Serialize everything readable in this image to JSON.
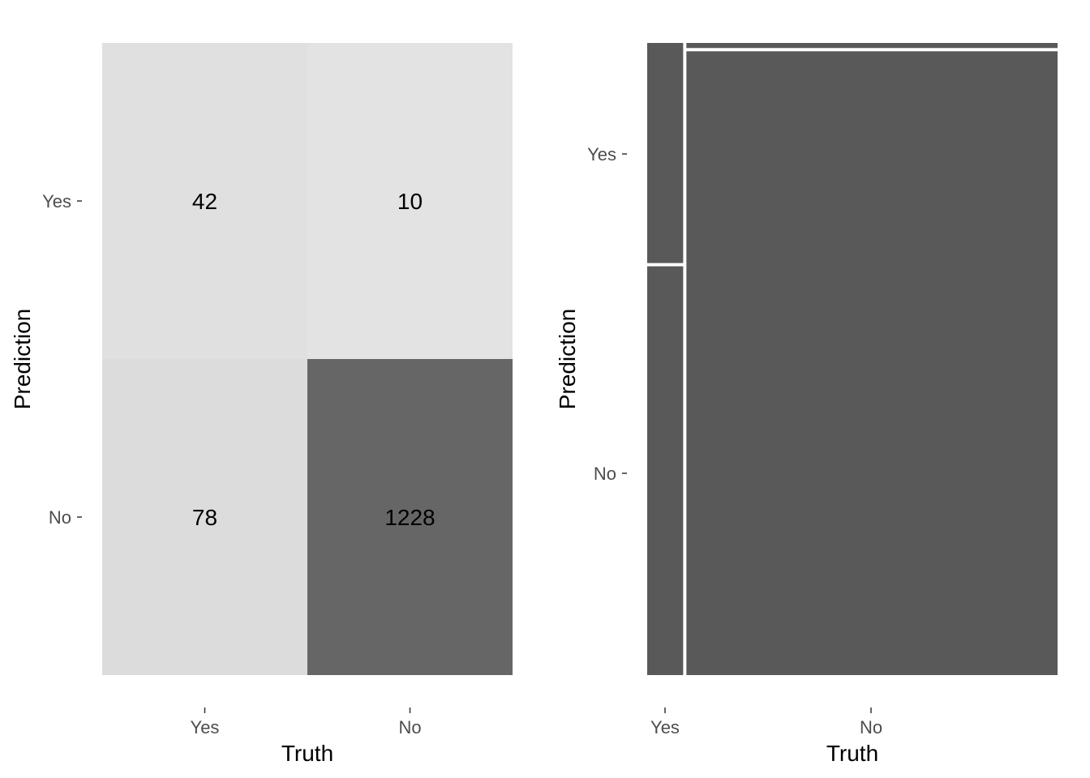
{
  "chart_data": [
    {
      "type": "heatmap",
      "xlabel": "Truth",
      "ylabel": "Prediction",
      "x_categories": [
        "Yes",
        "No"
      ],
      "y_categories": [
        "Yes",
        "No"
      ],
      "cells": [
        {
          "truth": "Yes",
          "prediction": "Yes",
          "value": 42
        },
        {
          "truth": "No",
          "prediction": "Yes",
          "value": 10
        },
        {
          "truth": "Yes",
          "prediction": "No",
          "value": 78
        },
        {
          "truth": "No",
          "prediction": "No",
          "value": 1228
        }
      ],
      "colors": {
        "low": "#e3e3e3",
        "high": "#666666"
      }
    },
    {
      "type": "mosaic",
      "xlabel": "Truth",
      "ylabel": "Prediction",
      "x_categories": [
        "Yes",
        "No"
      ],
      "y_categories": [
        "Yes",
        "No"
      ],
      "cells": [
        {
          "truth": "Yes",
          "prediction": "Yes",
          "value": 42
        },
        {
          "truth": "No",
          "prediction": "Yes",
          "value": 10
        },
        {
          "truth": "Yes",
          "prediction": "No",
          "value": 78
        },
        {
          "truth": "No",
          "prediction": "No",
          "value": 1228
        }
      ],
      "colors": {
        "fill": "#595959"
      }
    }
  ]
}
